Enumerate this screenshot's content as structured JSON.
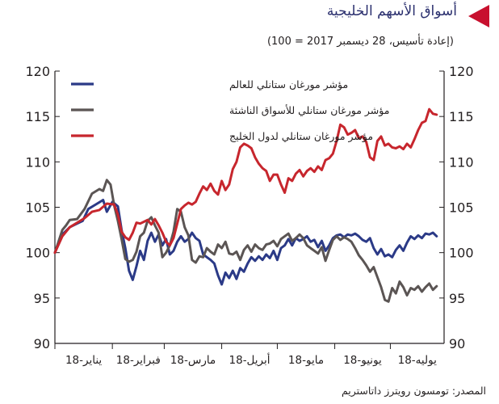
{
  "header": {
    "title": "أسواق الأسهم الخليجية",
    "subtitle": "(إعادة تأسيس، 28 ديسمبر 2017 = 100)"
  },
  "footer": {
    "source": "المصدر: تومسون رويترز داتاستريم"
  },
  "colors": {
    "title": "#2a2f6e",
    "marker": "#c8102e",
    "world": "#2b3a87",
    "emerging": "#5b5554",
    "gulf": "#c7262d",
    "axis": "#231f20"
  },
  "chart_data": {
    "type": "line",
    "ylim": [
      90,
      120
    ],
    "yticks": [
      90,
      95,
      100,
      105,
      110,
      115,
      120
    ],
    "xlim": [
      0,
      210
    ],
    "xticks": [
      {
        "x": 0,
        "label": "يناير-18"
      },
      {
        "x": 31,
        "label": "فبراير-18"
      },
      {
        "x": 59,
        "label": "مارس-18"
      },
      {
        "x": 90,
        "label": "أبريل-18"
      },
      {
        "x": 120,
        "label": "مايو-18"
      },
      {
        "x": 151,
        "label": "يونيو-18"
      },
      {
        "x": 181,
        "label": "يوليه-18"
      }
    ],
    "grid": false,
    "legend_position": "top-left",
    "series": [
      {
        "name": "مؤشر مورغان ستانلي للعالم",
        "color": "#2b3a87",
        "points": [
          [
            0,
            100
          ],
          [
            4,
            102
          ],
          [
            8,
            102.8
          ],
          [
            12,
            103.2
          ],
          [
            15,
            103.5
          ],
          [
            18,
            104.8
          ],
          [
            22,
            105.3
          ],
          [
            26,
            105.8
          ],
          [
            28,
            104.5
          ],
          [
            31,
            105.6
          ],
          [
            34,
            105.1
          ],
          [
            36,
            102.5
          ],
          [
            38,
            100.5
          ],
          [
            40,
            98
          ],
          [
            42,
            97
          ],
          [
            44,
            98.5
          ],
          [
            46,
            100.2
          ],
          [
            48,
            99.2
          ],
          [
            50,
            101.3
          ],
          [
            52,
            102.2
          ],
          [
            54,
            101.2
          ],
          [
            56,
            102
          ],
          [
            58,
            100.8
          ],
          [
            60,
            101.5
          ],
          [
            62,
            99.8
          ],
          [
            64,
            100.2
          ],
          [
            66,
            101.2
          ],
          [
            68,
            101.8
          ],
          [
            70,
            101.2
          ],
          [
            72,
            101.5
          ],
          [
            74,
            102.2
          ],
          [
            76,
            101.6
          ],
          [
            78,
            101.3
          ],
          [
            80,
            99.8
          ],
          [
            82,
            99.5
          ],
          [
            84,
            99.2
          ],
          [
            86,
            98.8
          ],
          [
            88,
            97.5
          ],
          [
            90,
            96.5
          ],
          [
            92,
            97.8
          ],
          [
            94,
            97.2
          ],
          [
            96,
            98
          ],
          [
            98,
            97.1
          ],
          [
            100,
            98.3
          ],
          [
            102,
            97.9
          ],
          [
            104,
            98.8
          ],
          [
            106,
            99.5
          ],
          [
            108,
            99.1
          ],
          [
            110,
            99.6
          ],
          [
            112,
            99.2
          ],
          [
            114,
            99.8
          ],
          [
            116,
            99.4
          ],
          [
            118,
            100.2
          ],
          [
            120,
            99.2
          ],
          [
            122,
            100.5
          ],
          [
            124,
            100.8
          ],
          [
            126,
            101.5
          ],
          [
            128,
            100.8
          ],
          [
            130,
            101.6
          ],
          [
            132,
            101.3
          ],
          [
            134,
            101.5
          ],
          [
            136,
            101.8
          ],
          [
            138,
            101.2
          ],
          [
            140,
            101.4
          ],
          [
            142,
            100.6
          ],
          [
            144,
            101.3
          ],
          [
            146,
            100.2
          ],
          [
            148,
            100.8
          ],
          [
            150,
            101.6
          ],
          [
            152,
            101.9
          ],
          [
            154,
            102
          ],
          [
            156,
            101.7
          ],
          [
            158,
            102
          ],
          [
            160,
            101.9
          ],
          [
            162,
            102.1
          ],
          [
            164,
            101.8
          ],
          [
            166,
            101.4
          ],
          [
            168,
            101.2
          ],
          [
            170,
            101.6
          ],
          [
            172,
            100.5
          ],
          [
            174,
            99.8
          ],
          [
            176,
            100.4
          ],
          [
            178,
            99.6
          ],
          [
            180,
            99.8
          ],
          [
            182,
            99.5
          ],
          [
            184,
            100.3
          ],
          [
            186,
            100.8
          ],
          [
            188,
            100.2
          ],
          [
            190,
            101.1
          ],
          [
            192,
            101.8
          ],
          [
            194,
            101.5
          ],
          [
            196,
            101.9
          ],
          [
            198,
            101.6
          ],
          [
            200,
            102.1
          ],
          [
            202,
            102
          ],
          [
            204,
            102.2
          ],
          [
            206,
            101.8
          ]
        ]
      },
      {
        "name": "مؤشر مورغان ستانلي للأسواق الناشئة",
        "color": "#5b5554",
        "points": [
          [
            0,
            100
          ],
          [
            4,
            102.5
          ],
          [
            6,
            103
          ],
          [
            8,
            103.6
          ],
          [
            12,
            103.7
          ],
          [
            16,
            104.8
          ],
          [
            20,
            106.5
          ],
          [
            24,
            107
          ],
          [
            26,
            106.8
          ],
          [
            28,
            108
          ],
          [
            30,
            107.5
          ],
          [
            32,
            105.2
          ],
          [
            34,
            103.5
          ],
          [
            36,
            101.5
          ],
          [
            38,
            99.3
          ],
          [
            40,
            99
          ],
          [
            42,
            99.2
          ],
          [
            44,
            100.1
          ],
          [
            46,
            101.8
          ],
          [
            48,
            102.2
          ],
          [
            50,
            103.5
          ],
          [
            52,
            103.9
          ],
          [
            54,
            103
          ],
          [
            56,
            102.2
          ],
          [
            58,
            99.5
          ],
          [
            60,
            100
          ],
          [
            62,
            100.8
          ],
          [
            64,
            102.3
          ],
          [
            66,
            104.8
          ],
          [
            68,
            104.5
          ],
          [
            70,
            102.8
          ],
          [
            72,
            101.9
          ],
          [
            74,
            99.2
          ],
          [
            76,
            98.9
          ],
          [
            78,
            99.6
          ],
          [
            80,
            99.5
          ],
          [
            82,
            100.5
          ],
          [
            84,
            100.1
          ],
          [
            86,
            99.8
          ],
          [
            88,
            100.9
          ],
          [
            90,
            100.5
          ],
          [
            92,
            101.2
          ],
          [
            94,
            99.9
          ],
          [
            96,
            99.8
          ],
          [
            98,
            100.1
          ],
          [
            100,
            99.2
          ],
          [
            102,
            100.3
          ],
          [
            104,
            100.8
          ],
          [
            106,
            100.1
          ],
          [
            108,
            100.9
          ],
          [
            110,
            100.5
          ],
          [
            112,
            100.3
          ],
          [
            114,
            100.9
          ],
          [
            116,
            101
          ],
          [
            118,
            101.3
          ],
          [
            120,
            100.7
          ],
          [
            122,
            101.5
          ],
          [
            124,
            101.8
          ],
          [
            126,
            102.1
          ],
          [
            128,
            101.3
          ],
          [
            130,
            101.6
          ],
          [
            132,
            102
          ],
          [
            134,
            101.6
          ],
          [
            136,
            100.8
          ],
          [
            138,
            100.5
          ],
          [
            140,
            100.2
          ],
          [
            142,
            99.9
          ],
          [
            144,
            100.6
          ],
          [
            146,
            99.1
          ],
          [
            148,
            100.3
          ],
          [
            150,
            101.4
          ],
          [
            152,
            101.8
          ],
          [
            154,
            101.4
          ],
          [
            156,
            101.7
          ],
          [
            158,
            101.5
          ],
          [
            160,
            101.2
          ],
          [
            162,
            100.5
          ],
          [
            164,
            99.7
          ],
          [
            166,
            99.2
          ],
          [
            168,
            98.6
          ],
          [
            170,
            97.9
          ],
          [
            172,
            98.4
          ],
          [
            174,
            97.3
          ],
          [
            176,
            96.2
          ],
          [
            178,
            94.8
          ],
          [
            180,
            94.6
          ],
          [
            182,
            96.1
          ],
          [
            184,
            95.5
          ],
          [
            186,
            96.8
          ],
          [
            188,
            96.2
          ],
          [
            190,
            95.3
          ],
          [
            192,
            96.1
          ],
          [
            194,
            95.9
          ],
          [
            196,
            96.3
          ],
          [
            198,
            95.7
          ],
          [
            200,
            96.2
          ],
          [
            202,
            96.6
          ],
          [
            204,
            95.9
          ],
          [
            206,
            96.3
          ]
        ]
      },
      {
        "name": "مؤشر مورغان ستانلي لدول الخليج",
        "color": "#c7262d",
        "points": [
          [
            0,
            100
          ],
          [
            4,
            101.8
          ],
          [
            8,
            102.8
          ],
          [
            12,
            103.3
          ],
          [
            16,
            103.8
          ],
          [
            20,
            104.5
          ],
          [
            24,
            104.7
          ],
          [
            28,
            105.4
          ],
          [
            32,
            105.3
          ],
          [
            34,
            104.2
          ],
          [
            36,
            102.3
          ],
          [
            38,
            101.7
          ],
          [
            40,
            101.4
          ],
          [
            42,
            102.2
          ],
          [
            44,
            103.3
          ],
          [
            46,
            103.2
          ],
          [
            48,
            103.4
          ],
          [
            50,
            103.6
          ],
          [
            52,
            103.1
          ],
          [
            54,
            103.7
          ],
          [
            56,
            103
          ],
          [
            58,
            102.2
          ],
          [
            60,
            101.2
          ],
          [
            62,
            100.8
          ],
          [
            64,
            101.6
          ],
          [
            66,
            103.2
          ],
          [
            68,
            104.8
          ],
          [
            70,
            105.2
          ],
          [
            72,
            105.5
          ],
          [
            74,
            105.3
          ],
          [
            76,
            105.6
          ],
          [
            78,
            106.5
          ],
          [
            80,
            107.3
          ],
          [
            82,
            106.9
          ],
          [
            84,
            107.6
          ],
          [
            86,
            106.8
          ],
          [
            88,
            106.4
          ],
          [
            90,
            107.9
          ],
          [
            92,
            106.9
          ],
          [
            94,
            107.5
          ],
          [
            96,
            109.2
          ],
          [
            98,
            110
          ],
          [
            100,
            111.6
          ],
          [
            102,
            112
          ],
          [
            104,
            111.8
          ],
          [
            106,
            111.5
          ],
          [
            108,
            110.5
          ],
          [
            110,
            109.8
          ],
          [
            112,
            109.3
          ],
          [
            114,
            109
          ],
          [
            116,
            107.9
          ],
          [
            118,
            108.6
          ],
          [
            120,
            108.6
          ],
          [
            122,
            107.5
          ],
          [
            124,
            106.6
          ],
          [
            126,
            108.2
          ],
          [
            128,
            107.9
          ],
          [
            130,
            108.7
          ],
          [
            132,
            109.1
          ],
          [
            134,
            108.4
          ],
          [
            136,
            109
          ],
          [
            138,
            109.3
          ],
          [
            140,
            108.9
          ],
          [
            142,
            109.5
          ],
          [
            144,
            109.1
          ],
          [
            146,
            110.2
          ],
          [
            148,
            110.4
          ],
          [
            150,
            110.9
          ],
          [
            152,
            112.3
          ],
          [
            154,
            114.1
          ],
          [
            156,
            113.8
          ],
          [
            158,
            113
          ],
          [
            160,
            113.2
          ],
          [
            162,
            113.5
          ],
          [
            164,
            112.6
          ],
          [
            166,
            112.8
          ],
          [
            168,
            112.2
          ],
          [
            170,
            110.5
          ],
          [
            172,
            110.2
          ],
          [
            174,
            112.3
          ],
          [
            176,
            112.8
          ],
          [
            178,
            111.8
          ],
          [
            180,
            112
          ],
          [
            182,
            111.6
          ],
          [
            184,
            111.5
          ],
          [
            186,
            111.7
          ],
          [
            188,
            111.4
          ],
          [
            190,
            112
          ],
          [
            192,
            111.6
          ],
          [
            194,
            112.5
          ],
          [
            196,
            113.5
          ],
          [
            198,
            114.3
          ],
          [
            200,
            114.5
          ],
          [
            202,
            115.8
          ],
          [
            204,
            115.3
          ],
          [
            206,
            115.2
          ]
        ]
      }
    ]
  }
}
